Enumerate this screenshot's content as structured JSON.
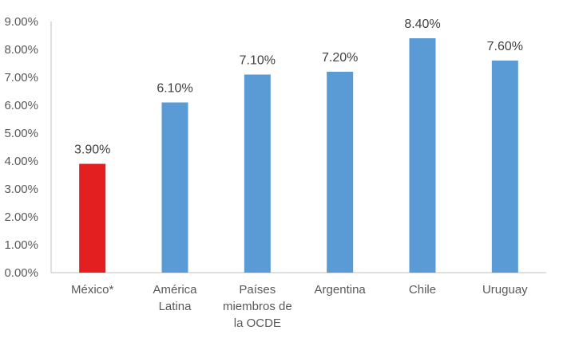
{
  "chart_data": {
    "type": "bar",
    "categories": [
      [
        "México*"
      ],
      [
        "América",
        "Latina"
      ],
      [
        "Países",
        "miembros de",
        "la OCDE"
      ],
      [
        "Argentina"
      ],
      [
        "Chile"
      ],
      [
        "Uruguay"
      ]
    ],
    "values": [
      3.9,
      6.1,
      7.1,
      7.2,
      8.4,
      7.6
    ],
    "data_labels": [
      "3.90%",
      "6.10%",
      "7.10%",
      "7.20%",
      "8.40%",
      "7.60%"
    ],
    "bar_colors": [
      "#e31f1f",
      "#5b9bd5",
      "#5b9bd5",
      "#5b9bd5",
      "#5b9bd5",
      "#5b9bd5"
    ],
    "ylim": [
      0,
      9
    ],
    "yticks": [
      0,
      1,
      2,
      3,
      4,
      5,
      6,
      7,
      8,
      9
    ],
    "ytick_labels": [
      "0.00%",
      "1.00%",
      "2.00%",
      "3.00%",
      "4.00%",
      "5.00%",
      "6.00%",
      "7.00%",
      "8.00%",
      "9.00%"
    ],
    "grid": false,
    "legend": "none"
  }
}
